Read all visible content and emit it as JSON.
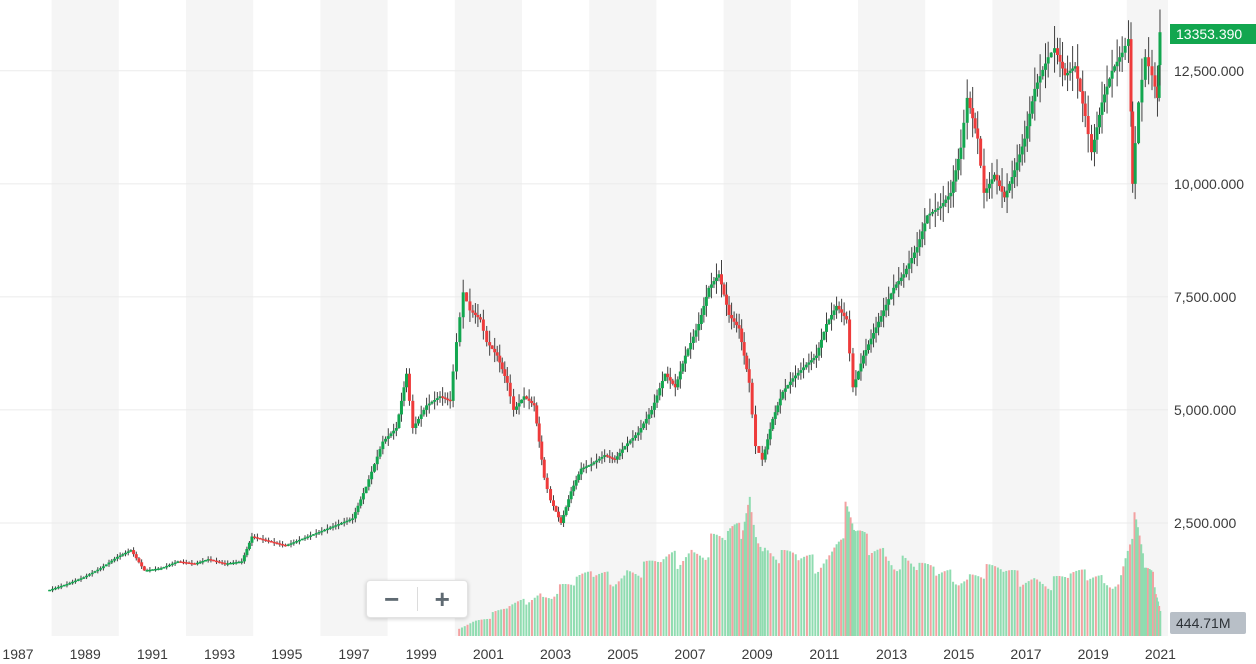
{
  "chart_data": {
    "type": "ohlc",
    "x_ticks": [
      "1987",
      "1989",
      "1991",
      "1993",
      "1995",
      "1997",
      "1999",
      "2001",
      "2003",
      "2005",
      "2007",
      "2009",
      "2011",
      "2013",
      "2015",
      "2017",
      "2019",
      "2021"
    ],
    "y_ticks": [
      "2,500.000",
      "5,000.000",
      "7,500.000",
      "10,000.000",
      "12,500.000"
    ],
    "y_range": [
      0,
      13800
    ],
    "x_range": [
      1987.0,
      2021.0
    ],
    "last_price_label": "13353.390",
    "last_volume_label": "444.71M",
    "colors": {
      "up": "#12a64f",
      "down": "#ee3b3b",
      "wick": "#3f3f3f",
      "band": "#f5f5f5",
      "grid": "#ebebeb"
    },
    "price_series": {
      "name": "",
      "points": [
        [
          1987.9,
          1000
        ],
        [
          1988.5,
          1150
        ],
        [
          1989.0,
          1300
        ],
        [
          1989.5,
          1500
        ],
        [
          1990.0,
          1750
        ],
        [
          1990.4,
          1900
        ],
        [
          1990.8,
          1450
        ],
        [
          1991.3,
          1500
        ],
        [
          1991.8,
          1650
        ],
        [
          1992.3,
          1600
        ],
        [
          1992.7,
          1700
        ],
        [
          1993.2,
          1600
        ],
        [
          1993.7,
          1650
        ],
        [
          1994.0,
          2200
        ],
        [
          1994.5,
          2100
        ],
        [
          1995.0,
          2000
        ],
        [
          1995.5,
          2150
        ],
        [
          1996.0,
          2300
        ],
        [
          1996.5,
          2450
        ],
        [
          1997.0,
          2600
        ],
        [
          1997.4,
          3300
        ],
        [
          1997.9,
          4300
        ],
        [
          1998.3,
          4600
        ],
        [
          1998.6,
          5800
        ],
        [
          1998.8,
          4600
        ],
        [
          1999.2,
          5100
        ],
        [
          1999.6,
          5300
        ],
        [
          1999.9,
          5200
        ],
        [
          2000.1,
          6500
        ],
        [
          2000.3,
          7600
        ],
        [
          2000.5,
          7200
        ],
        [
          2000.8,
          7000
        ],
        [
          2001.0,
          6500
        ],
        [
          2001.3,
          6200
        ],
        [
          2001.6,
          5600
        ],
        [
          2001.8,
          5000
        ],
        [
          2002.1,
          5300
        ],
        [
          2002.4,
          5100
        ],
        [
          2002.7,
          3500
        ],
        [
          2002.9,
          3000
        ],
        [
          2003.2,
          2500
        ],
        [
          2003.5,
          3200
        ],
        [
          2003.8,
          3700
        ],
        [
          2004.1,
          3800
        ],
        [
          2004.5,
          4000
        ],
        [
          2004.8,
          3900
        ],
        [
          2005.1,
          4200
        ],
        [
          2005.5,
          4500
        ],
        [
          2005.9,
          5000
        ],
        [
          2006.3,
          5800
        ],
        [
          2006.6,
          5500
        ],
        [
          2006.9,
          6200
        ],
        [
          2007.3,
          6900
        ],
        [
          2007.6,
          7700
        ],
        [
          2007.9,
          8000
        ],
        [
          2008.2,
          7100
        ],
        [
          2008.5,
          6800
        ],
        [
          2008.8,
          5600
        ],
        [
          2009.0,
          4200
        ],
        [
          2009.2,
          3900
        ],
        [
          2009.5,
          4800
        ],
        [
          2009.8,
          5400
        ],
        [
          2010.1,
          5700
        ],
        [
          2010.5,
          6000
        ],
        [
          2010.8,
          6200
        ],
        [
          2011.1,
          6900
        ],
        [
          2011.4,
          7300
        ],
        [
          2011.7,
          7000
        ],
        [
          2011.9,
          5500
        ],
        [
          2012.2,
          6200
        ],
        [
          2012.5,
          6700
        ],
        [
          2012.8,
          7200
        ],
        [
          2013.1,
          7700
        ],
        [
          2013.4,
          8000
        ],
        [
          2013.8,
          8600
        ],
        [
          2014.1,
          9300
        ],
        [
          2014.5,
          9500
        ],
        [
          2014.8,
          9800
        ],
        [
          2015.1,
          10800
        ],
        [
          2015.3,
          11900
        ],
        [
          2015.6,
          11000
        ],
        [
          2015.8,
          9800
        ],
        [
          2016.1,
          10200
        ],
        [
          2016.4,
          9700
        ],
        [
          2016.7,
          10300
        ],
        [
          2017.0,
          11000
        ],
        [
          2017.3,
          12100
        ],
        [
          2017.7,
          12800
        ],
        [
          2017.9,
          13000
        ],
        [
          2018.2,
          12400
        ],
        [
          2018.5,
          12600
        ],
        [
          2018.8,
          11500
        ],
        [
          2019.0,
          10700
        ],
        [
          2019.3,
          11800
        ],
        [
          2019.6,
          12500
        ],
        [
          2019.9,
          12900
        ],
        [
          2020.1,
          13200
        ],
        [
          2020.2,
          10000
        ],
        [
          2020.4,
          11800
        ],
        [
          2020.6,
          12800
        ],
        [
          2020.8,
          12400
        ],
        [
          2020.95,
          11900
        ],
        [
          2021.0,
          13353
        ]
      ]
    },
    "volume_series": {
      "name": "",
      "points": [
        [
          2000.1,
          200
        ],
        [
          2000.6,
          350
        ],
        [
          2001.1,
          500
        ],
        [
          2001.6,
          650
        ],
        [
          2002.1,
          800
        ],
        [
          2002.6,
          950
        ],
        [
          2003.1,
          1100
        ],
        [
          2003.6,
          1250
        ],
        [
          2004.1,
          1400
        ],
        [
          2004.6,
          1350
        ],
        [
          2005.1,
          1450
        ],
        [
          2005.6,
          1550
        ],
        [
          2006.1,
          1650
        ],
        [
          2006.6,
          1800
        ],
        [
          2007.1,
          1950
        ],
        [
          2007.6,
          2150
        ],
        [
          2008.1,
          2250
        ],
        [
          2008.5,
          2400
        ],
        [
          2008.8,
          3100
        ],
        [
          2009.2,
          1900
        ],
        [
          2009.7,
          1800
        ],
        [
          2010.2,
          1750
        ],
        [
          2010.7,
          1700
        ],
        [
          2011.2,
          1900
        ],
        [
          2011.6,
          2800
        ],
        [
          2011.9,
          2300
        ],
        [
          2012.3,
          2100
        ],
        [
          2012.8,
          1900
        ],
        [
          2013.3,
          1700
        ],
        [
          2013.8,
          1550
        ],
        [
          2014.3,
          1450
        ],
        [
          2014.8,
          1400
        ],
        [
          2015.3,
          1350
        ],
        [
          2015.8,
          1500
        ],
        [
          2016.3,
          1450
        ],
        [
          2016.8,
          1350
        ],
        [
          2017.3,
          1300
        ],
        [
          2017.8,
          1250
        ],
        [
          2018.3,
          1350
        ],
        [
          2018.8,
          1400
        ],
        [
          2019.3,
          1300
        ],
        [
          2019.8,
          1300
        ],
        [
          2020.2,
          2600
        ],
        [
          2020.5,
          1600
        ],
        [
          2020.8,
          1300
        ],
        [
          2021.0,
          444.71
        ]
      ]
    }
  },
  "ui": {
    "zoom_out_label": "−",
    "zoom_in_label": "+"
  }
}
